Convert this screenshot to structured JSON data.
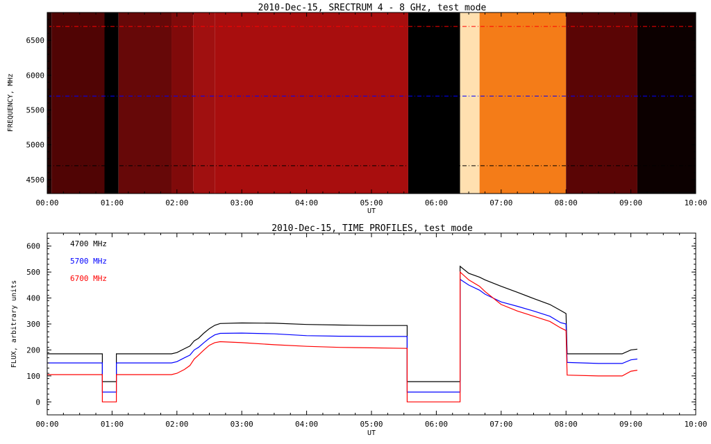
{
  "chart_data": [
    {
      "type": "heatmap",
      "title": "2010-Dec-15,  SRECTRUM 4 - 8 GHz,  test mode",
      "xlabel": "UT",
      "ylabel": "FREQUENCY, MHz",
      "xlim": [
        "00:00",
        "10:00"
      ],
      "ylim": [
        4300,
        6900
      ],
      "x_ticks": [
        "00:00",
        "01:00",
        "02:00",
        "03:00",
        "04:00",
        "05:00",
        "06:00",
        "07:00",
        "08:00",
        "09:00",
        "10:00"
      ],
      "y_ticks": [
        4500,
        5000,
        5500,
        6000,
        6500
      ],
      "reference_lines": [
        {
          "freq_mhz": 6700,
          "color": "#ff0000",
          "style": "dash-dot"
        },
        {
          "freq_mhz": 5700,
          "color": "#0000ff",
          "style": "dash-dot"
        },
        {
          "freq_mhz": 4700,
          "color": "#000000",
          "style": "dash-dot"
        }
      ],
      "bands": [
        {
          "start": "00:00",
          "end": "00:04",
          "color": "#200000"
        },
        {
          "start": "00:04",
          "end": "00:53",
          "color": "#500404"
        },
        {
          "start": "00:53",
          "end": "01:06",
          "color": "#000000"
        },
        {
          "start": "01:06",
          "end": "01:55",
          "color": "#660808"
        },
        {
          "start": "01:55",
          "end": "02:15",
          "color": "#800a0a"
        },
        {
          "start": "02:15",
          "end": "02:35",
          "color": "#a01010"
        },
        {
          "start": "02:35",
          "end": "05:34",
          "color": "#a80e0e"
        },
        {
          "start": "05:34",
          "end": "06:22",
          "color": "#000000"
        },
        {
          "start": "06:22",
          "end": "06:40",
          "color": "#ffe0b0"
        },
        {
          "start": "06:40",
          "end": "08:00",
          "color": "#f47c18"
        },
        {
          "start": "08:00",
          "end": "09:06",
          "color": "#5a0505"
        },
        {
          "start": "09:06",
          "end": "10:00",
          "color": "#0c0000"
        }
      ]
    },
    {
      "type": "line",
      "title": "2010-Dec-15,  TIME PROFILES,  test mode",
      "xlabel": "UT",
      "ylabel": "FLUX, arbitrary units",
      "xlim": [
        "00:00",
        "10:00"
      ],
      "ylim": [
        -50,
        650
      ],
      "x_ticks": [
        "00:00",
        "01:00",
        "02:00",
        "03:00",
        "04:00",
        "05:00",
        "06:00",
        "07:00",
        "08:00",
        "09:00",
        "10:00"
      ],
      "y_ticks": [
        0,
        100,
        200,
        300,
        400,
        500,
        600
      ],
      "series": [
        {
          "name": "4700 MHz",
          "color": "#000000",
          "points": [
            [
              "00:00",
              185
            ],
            [
              "00:51",
              185
            ],
            [
              "00:51",
              78
            ],
            [
              "01:04",
              78
            ],
            [
              "01:04",
              185
            ],
            [
              "01:55",
              185
            ],
            [
              "02:00",
              190
            ],
            [
              "02:07",
              205
            ],
            [
              "02:12",
              215
            ],
            [
              "02:16",
              235
            ],
            [
              "02:20",
              245
            ],
            [
              "02:25",
              265
            ],
            [
              "02:30",
              282
            ],
            [
              "02:35",
              295
            ],
            [
              "02:40",
              302
            ],
            [
              "03:00",
              304
            ],
            [
              "03:30",
              303
            ],
            [
              "04:00",
              298
            ],
            [
              "04:30",
              296
            ],
            [
              "05:00",
              294
            ],
            [
              "05:33",
              294
            ],
            [
              "05:33",
              78
            ],
            [
              "06:22",
              78
            ],
            [
              "06:22",
              522
            ],
            [
              "06:30",
              495
            ],
            [
              "06:40",
              480
            ],
            [
              "06:45",
              470
            ],
            [
              "07:00",
              445
            ],
            [
              "07:15",
              422
            ],
            [
              "07:30",
              398
            ],
            [
              "07:45",
              375
            ],
            [
              "07:55",
              352
            ],
            [
              "08:00",
              340
            ],
            [
              "08:01",
              185
            ],
            [
              "08:30",
              185
            ],
            [
              "08:52",
              185
            ],
            [
              "09:00",
              200
            ],
            [
              "09:06",
              203
            ]
          ]
        },
        {
          "name": "5700 MHz",
          "color": "#0000ff",
          "points": [
            [
              "00:00",
              150
            ],
            [
              "00:51",
              150
            ],
            [
              "00:51",
              38
            ],
            [
              "01:04",
              38
            ],
            [
              "01:04",
              150
            ],
            [
              "01:55",
              150
            ],
            [
              "02:00",
              155
            ],
            [
              "02:07",
              170
            ],
            [
              "02:12",
              180
            ],
            [
              "02:16",
              200
            ],
            [
              "02:20",
              210
            ],
            [
              "02:25",
              228
            ],
            [
              "02:30",
              245
            ],
            [
              "02:35",
              258
            ],
            [
              "02:40",
              264
            ],
            [
              "03:00",
              265
            ],
            [
              "03:30",
              262
            ],
            [
              "04:00",
              255
            ],
            [
              "04:30",
              253
            ],
            [
              "05:00",
              252
            ],
            [
              "05:33",
              252
            ],
            [
              "05:33",
              38
            ],
            [
              "06:22",
              38
            ],
            [
              "06:22",
              472
            ],
            [
              "06:30",
              450
            ],
            [
              "06:40",
              430
            ],
            [
              "06:45",
              415
            ],
            [
              "07:00",
              385
            ],
            [
              "07:15",
              368
            ],
            [
              "07:30",
              350
            ],
            [
              "07:45",
              330
            ],
            [
              "07:55",
              305
            ],
            [
              "08:00",
              300
            ],
            [
              "08:01",
              152
            ],
            [
              "08:30",
              148
            ],
            [
              "08:52",
              148
            ],
            [
              "09:00",
              162
            ],
            [
              "09:06",
              165
            ]
          ]
        },
        {
          "name": "6700 MHz",
          "color": "#ff0000",
          "points": [
            [
              "00:00",
              105
            ],
            [
              "00:51",
              105
            ],
            [
              "00:51",
              0
            ],
            [
              "01:04",
              0
            ],
            [
              "01:04",
              105
            ],
            [
              "01:55",
              105
            ],
            [
              "02:00",
              110
            ],
            [
              "02:07",
              125
            ],
            [
              "02:12",
              140
            ],
            [
              "02:16",
              165
            ],
            [
              "02:20",
              180
            ],
            [
              "02:25",
              200
            ],
            [
              "02:30",
              218
            ],
            [
              "02:35",
              228
            ],
            [
              "02:40",
              232
            ],
            [
              "03:00",
              228
            ],
            [
              "03:30",
              220
            ],
            [
              "04:00",
              214
            ],
            [
              "04:30",
              210
            ],
            [
              "05:00",
              208
            ],
            [
              "05:33",
              206
            ],
            [
              "05:33",
              0
            ],
            [
              "06:22",
              0
            ],
            [
              "06:22",
              500
            ],
            [
              "06:30",
              470
            ],
            [
              "06:40",
              445
            ],
            [
              "06:45",
              425
            ],
            [
              "07:00",
              375
            ],
            [
              "07:15",
              350
            ],
            [
              "07:30",
              330
            ],
            [
              "07:45",
              310
            ],
            [
              "07:55",
              285
            ],
            [
              "08:00",
              275
            ],
            [
              "08:01",
              103
            ],
            [
              "08:30",
              100
            ],
            [
              "08:52",
              100
            ],
            [
              "09:00",
              118
            ],
            [
              "09:06",
              122
            ]
          ]
        }
      ]
    }
  ]
}
